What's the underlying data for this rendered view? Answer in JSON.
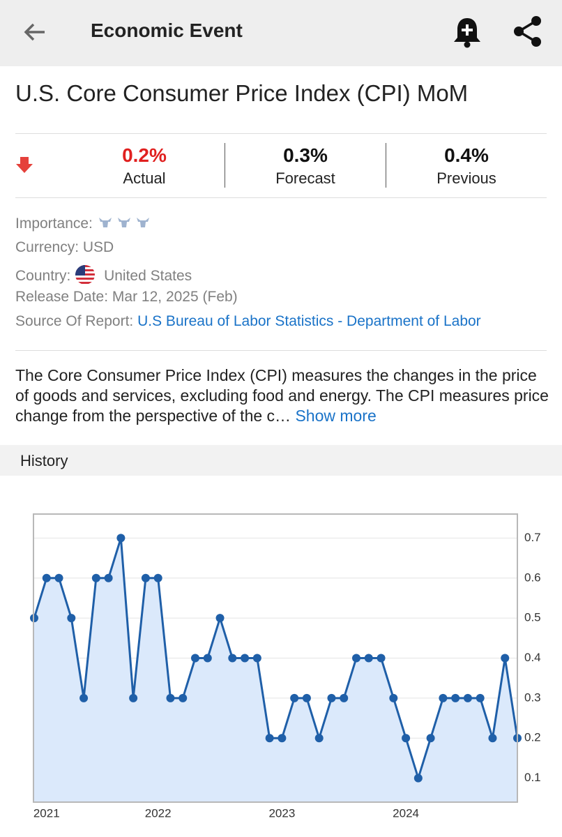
{
  "header": {
    "title": "Economic Event"
  },
  "event": {
    "title": "U.S. Core Consumer Price Index (CPI) MoM"
  },
  "stats": [
    {
      "value": "0.2%",
      "label": "Actual"
    },
    {
      "value": "0.3%",
      "label": "Forecast"
    },
    {
      "value": "0.4%",
      "label": "Previous"
    }
  ],
  "details": {
    "importance": {
      "label": "Importance:"
    },
    "currency": {
      "label": "Currency:",
      "value": "USD"
    },
    "country": {
      "label": "Country:",
      "value": "United States"
    },
    "release_date": {
      "label": "Release Date:",
      "value": "Mar 12, 2025 (Feb)"
    },
    "source": {
      "label": "Source Of Report:",
      "value": "U.S Bureau of Labor Statistics - Department of Labor"
    }
  },
  "description": {
    "text": "The Core Consumer Price Index (CPI) measures the changes in the price of goods and services, excluding food and energy. The CPI measures price change from the perspective of the c…",
    "more": "Show more"
  },
  "history": {
    "title": "History"
  },
  "chart_data": {
    "type": "line",
    "categories": [
      null,
      "2021",
      null,
      null,
      null,
      null,
      null,
      null,
      null,
      null,
      "2022",
      null,
      null,
      null,
      null,
      null,
      null,
      null,
      null,
      null,
      "2023",
      null,
      null,
      null,
      null,
      null,
      null,
      null,
      null,
      null,
      "2024",
      null,
      null,
      null,
      null,
      null,
      null,
      null,
      null,
      null
    ],
    "values": [
      0.5,
      0.6,
      0.6,
      0.5,
      0.3,
      0.6,
      0.6,
      0.7,
      0.3,
      0.6,
      0.6,
      0.3,
      0.3,
      0.4,
      0.4,
      0.5,
      0.4,
      0.4,
      0.4,
      0.2,
      0.2,
      0.3,
      0.3,
      0.2,
      0.3,
      0.3,
      0.4,
      0.4,
      0.4,
      0.3,
      0.2,
      0.1,
      0.2,
      0.3,
      0.3,
      0.3,
      0.3,
      0.2,
      0.4,
      0.2
    ],
    "color": "#1f5fa8",
    "area_color": "#dbe9fb",
    "ylim": [
      0.04,
      0.76
    ],
    "yticks": [
      0.1,
      0.2,
      0.3,
      0.4,
      0.5,
      0.6,
      0.7
    ],
    "grid": true
  }
}
